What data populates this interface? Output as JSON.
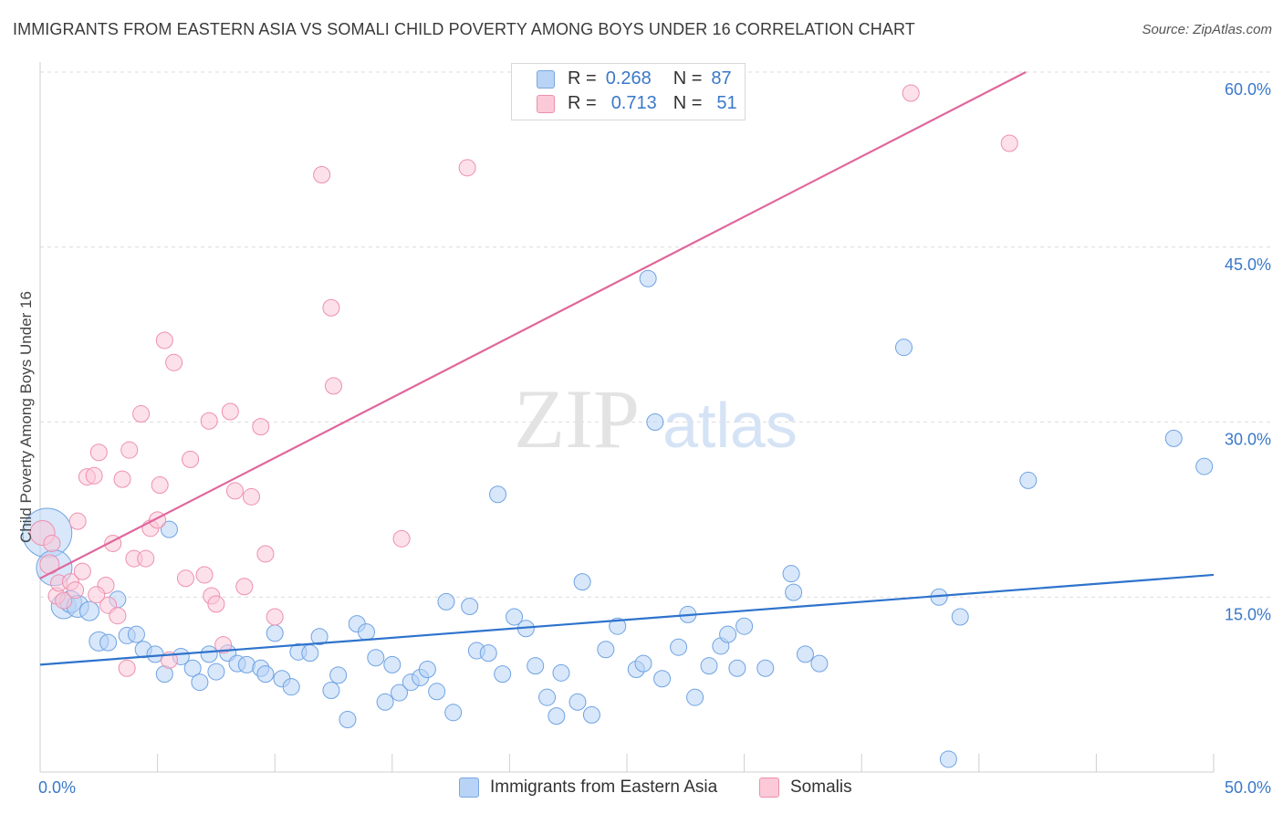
{
  "title": "IMMIGRANTS FROM EASTERN ASIA VS SOMALI CHILD POVERTY AMONG BOYS UNDER 16 CORRELATION CHART",
  "source": "Source: ZipAtlas.com",
  "watermark": {
    "zip": "ZIP",
    "atlas": "atlas"
  },
  "legend": {
    "r_label": "R =",
    "n_label": "N =",
    "series": [
      {
        "r": "0.268",
        "n": "87",
        "color": "#6fa3e3"
      },
      {
        "r": "0.713",
        "n": "51",
        "color": "#f08fb0"
      }
    ]
  },
  "bottom_legend": [
    "Immigrants from Eastern Asia",
    "Somalis"
  ],
  "chart_data": {
    "type": "scatter",
    "title": "IMMIGRANTS FROM EASTERN ASIA VS SOMALI CHILD POVERTY AMONG BOYS UNDER 16 CORRELATION CHART",
    "xlabel": "",
    "ylabel": "Child Poverty Among Boys Under 16",
    "xlim": [
      0,
      50
    ],
    "ylim": [
      0,
      60
    ],
    "x_tick_labels": [
      "0.0%",
      "50.0%"
    ],
    "y_tick_labels": [
      "15.0%",
      "30.0%",
      "45.0%",
      "60.0%"
    ],
    "y_ticks": [
      15,
      30,
      45,
      60
    ],
    "grid": true,
    "legend_position": "top-center",
    "series": [
      {
        "name": "Immigrants from Eastern Asia",
        "color": "#6fa3e3",
        "trend": [
          [
            0,
            9.2
          ],
          [
            50,
            16.9
          ]
        ],
        "points": [
          [
            0.3,
            20.5,
            1.8
          ],
          [
            0.6,
            17.5,
            1.3
          ],
          [
            1.0,
            14.2,
            0.9
          ],
          [
            1.3,
            14.6,
            0.8
          ],
          [
            1.6,
            14.2,
            0.8
          ],
          [
            2.1,
            13.8,
            0.7
          ],
          [
            2.5,
            11.2,
            0.7
          ],
          [
            2.9,
            11.1,
            0.6
          ],
          [
            3.3,
            14.8,
            0.6
          ],
          [
            3.7,
            11.7,
            0.6
          ],
          [
            4.1,
            11.8,
            0.6
          ],
          [
            4.4,
            10.5,
            0.6
          ],
          [
            4.9,
            10.1,
            0.6
          ],
          [
            5.3,
            8.4,
            0.6
          ],
          [
            5.5,
            20.8,
            0.6
          ],
          [
            6.0,
            9.9,
            0.6
          ],
          [
            6.5,
            8.9,
            0.6
          ],
          [
            6.8,
            7.7,
            0.6
          ],
          [
            7.2,
            10.1,
            0.6
          ],
          [
            7.5,
            8.6,
            0.6
          ],
          [
            8.0,
            10.2,
            0.6
          ],
          [
            8.4,
            9.3,
            0.6
          ],
          [
            8.8,
            9.2,
            0.6
          ],
          [
            9.4,
            8.9,
            0.6
          ],
          [
            9.6,
            8.4,
            0.6
          ],
          [
            10.0,
            11.9,
            0.6
          ],
          [
            10.3,
            8.0,
            0.6
          ],
          [
            10.7,
            7.3,
            0.6
          ],
          [
            11.0,
            10.3,
            0.6
          ],
          [
            11.5,
            10.2,
            0.6
          ],
          [
            11.9,
            11.6,
            0.6
          ],
          [
            12.4,
            7.0,
            0.6
          ],
          [
            12.7,
            8.3,
            0.6
          ],
          [
            13.1,
            4.5,
            0.6
          ],
          [
            13.5,
            12.7,
            0.6
          ],
          [
            13.9,
            12.0,
            0.6
          ],
          [
            14.3,
            9.8,
            0.6
          ],
          [
            14.7,
            6.0,
            0.6
          ],
          [
            15.0,
            9.2,
            0.6
          ],
          [
            15.3,
            6.8,
            0.6
          ],
          [
            15.8,
            7.7,
            0.6
          ],
          [
            16.2,
            8.1,
            0.6
          ],
          [
            16.5,
            8.8,
            0.6
          ],
          [
            16.9,
            6.9,
            0.6
          ],
          [
            17.3,
            14.6,
            0.6
          ],
          [
            17.6,
            5.1,
            0.6
          ],
          [
            18.3,
            14.2,
            0.6
          ],
          [
            18.6,
            10.4,
            0.6
          ],
          [
            19.1,
            10.2,
            0.6
          ],
          [
            19.5,
            23.8,
            0.6
          ],
          [
            19.7,
            8.4,
            0.6
          ],
          [
            20.2,
            13.3,
            0.6
          ],
          [
            20.7,
            12.3,
            0.6
          ],
          [
            21.1,
            9.1,
            0.6
          ],
          [
            21.6,
            6.4,
            0.6
          ],
          [
            22.0,
            4.8,
            0.6
          ],
          [
            22.2,
            8.5,
            0.6
          ],
          [
            22.9,
            6.0,
            0.6
          ],
          [
            23.1,
            16.3,
            0.6
          ],
          [
            23.5,
            4.9,
            0.6
          ],
          [
            24.1,
            10.5,
            0.6
          ],
          [
            24.6,
            12.5,
            0.6
          ],
          [
            25.4,
            8.8,
            0.6
          ],
          [
            25.7,
            9.3,
            0.6
          ],
          [
            25.9,
            42.3,
            0.6
          ],
          [
            26.2,
            30.0,
            0.6
          ],
          [
            26.5,
            8.0,
            0.6
          ],
          [
            27.2,
            10.7,
            0.6
          ],
          [
            27.6,
            13.5,
            0.6
          ],
          [
            27.9,
            6.4,
            0.6
          ],
          [
            28.5,
            9.1,
            0.6
          ],
          [
            29.0,
            10.8,
            0.6
          ],
          [
            29.3,
            11.8,
            0.6
          ],
          [
            29.7,
            8.9,
            0.6
          ],
          [
            30.0,
            12.5,
            0.6
          ],
          [
            30.9,
            8.9,
            0.6
          ],
          [
            32.0,
            17.0,
            0.6
          ],
          [
            32.1,
            15.4,
            0.6
          ],
          [
            32.6,
            10.1,
            0.6
          ],
          [
            33.2,
            9.3,
            0.6
          ],
          [
            36.8,
            36.4,
            0.6
          ],
          [
            38.3,
            15.0,
            0.6
          ],
          [
            38.7,
            1.1,
            0.6
          ],
          [
            39.2,
            13.3,
            0.6
          ],
          [
            42.1,
            25.0,
            0.6
          ],
          [
            48.3,
            28.6,
            0.6
          ],
          [
            49.6,
            26.2,
            0.6
          ]
        ]
      },
      {
        "name": "Somalis",
        "color": "#f08fb0",
        "trend": [
          [
            0,
            16.6
          ],
          [
            42,
            60.0
          ]
        ],
        "points": [
          [
            0.1,
            20.5,
            0.9
          ],
          [
            0.4,
            17.8,
            0.7
          ],
          [
            0.5,
            19.6,
            0.6
          ],
          [
            0.7,
            15.1,
            0.6
          ],
          [
            0.8,
            16.2,
            0.6
          ],
          [
            1.0,
            14.7,
            0.6
          ],
          [
            1.3,
            16.3,
            0.6
          ],
          [
            1.5,
            15.6,
            0.6
          ],
          [
            1.6,
            21.5,
            0.6
          ],
          [
            1.8,
            17.2,
            0.6
          ],
          [
            2.0,
            25.3,
            0.6
          ],
          [
            2.3,
            25.4,
            0.6
          ],
          [
            2.5,
            27.4,
            0.6
          ],
          [
            2.8,
            16.0,
            0.6
          ],
          [
            2.9,
            14.3,
            0.6
          ],
          [
            3.1,
            19.6,
            0.6
          ],
          [
            3.3,
            13.4,
            0.6
          ],
          [
            3.5,
            25.1,
            0.6
          ],
          [
            3.7,
            8.9,
            0.6
          ],
          [
            3.8,
            27.6,
            0.6
          ],
          [
            4.0,
            18.3,
            0.6
          ],
          [
            4.3,
            30.7,
            0.6
          ],
          [
            4.5,
            18.3,
            0.6
          ],
          [
            4.7,
            20.9,
            0.6
          ],
          [
            5.0,
            21.6,
            0.6
          ],
          [
            5.1,
            24.6,
            0.6
          ],
          [
            5.3,
            37.0,
            0.6
          ],
          [
            5.5,
            9.6,
            0.6
          ],
          [
            5.7,
            35.1,
            0.6
          ],
          [
            6.2,
            16.6,
            0.6
          ],
          [
            6.4,
            26.8,
            0.6
          ],
          [
            7.0,
            16.9,
            0.6
          ],
          [
            7.2,
            30.1,
            0.6
          ],
          [
            7.3,
            15.1,
            0.6
          ],
          [
            7.5,
            14.4,
            0.6
          ],
          [
            7.8,
            10.9,
            0.6
          ],
          [
            8.1,
            30.9,
            0.6
          ],
          [
            8.3,
            24.1,
            0.6
          ],
          [
            8.7,
            15.9,
            0.6
          ],
          [
            9.0,
            23.6,
            0.6
          ],
          [
            9.4,
            29.6,
            0.6
          ],
          [
            9.6,
            18.7,
            0.6
          ],
          [
            10.0,
            13.3,
            0.6
          ],
          [
            12.0,
            51.2,
            0.6
          ],
          [
            12.4,
            39.8,
            0.6
          ],
          [
            12.5,
            33.1,
            0.6
          ],
          [
            15.4,
            20.0,
            0.6
          ],
          [
            18.2,
            51.8,
            0.6
          ],
          [
            37.1,
            58.2,
            0.6
          ],
          [
            41.3,
            53.9,
            0.6
          ],
          [
            2.4,
            15.2,
            0.6
          ]
        ]
      }
    ]
  }
}
